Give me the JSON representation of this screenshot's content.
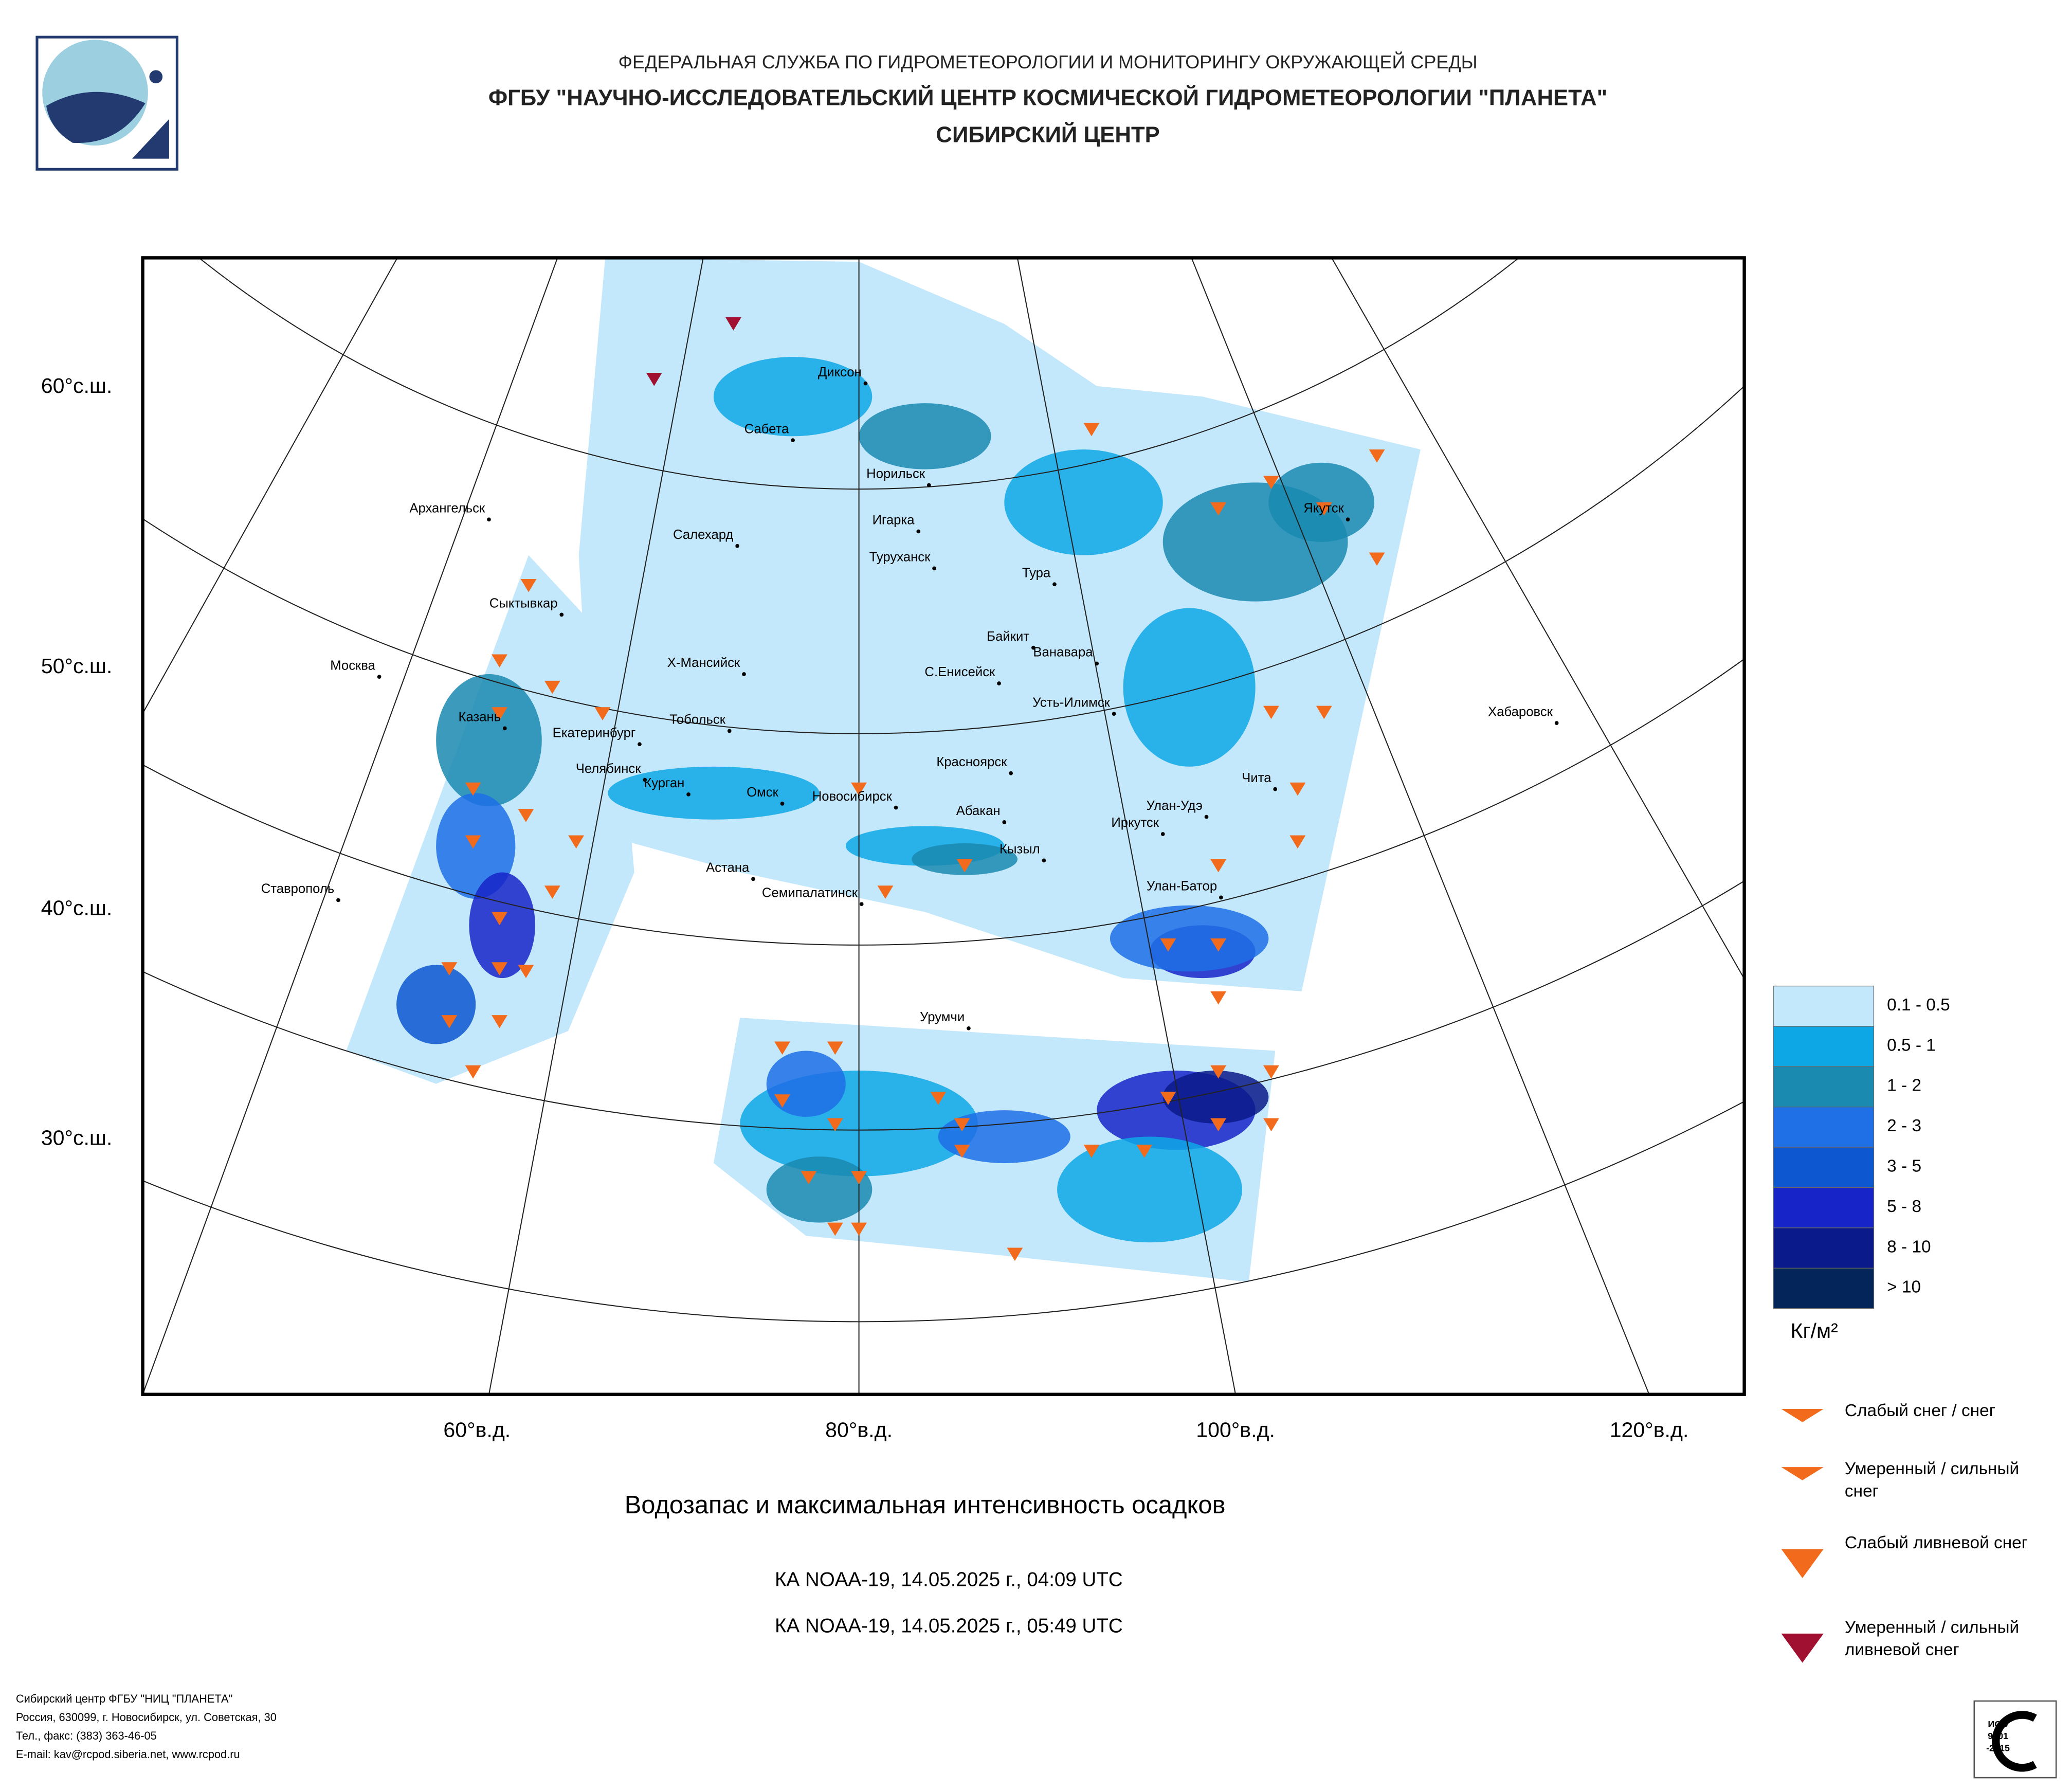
{
  "header": {
    "line1": "ФЕДЕРАЛЬНАЯ СЛУЖБА ПО ГИДРОМЕТЕОРОЛОГИИ И МОНИТОРИНГУ ОКРУЖАЮЩЕЙ СРЕДЫ",
    "line2": "ФГБУ \"НАУЧНО-ИССЛЕДОВАТЕЛЬСКИЙ ЦЕНТР КОСМИЧЕСКОЙ ГИДРОМЕТЕОРОЛОГИИ \"ПЛАНЕТА\"",
    "line3": "СИБИРСКИЙ ЦЕНТР"
  },
  "map": {
    "lat_labels": [
      "60°с.ш.",
      "50°с.ш.",
      "40°с.ш.",
      "30°с.ш."
    ],
    "lon_labels": [
      "60°в.д.",
      "80°в.д.",
      "100°в.д.",
      "120°в.д."
    ],
    "cities": [
      "Диксон",
      "Сабета",
      "Норильск",
      "Архангельск",
      "Игарка",
      "Салехард",
      "Туруханск",
      "Тура",
      "Якутск",
      "Сыктывкар",
      "Байкит",
      "Ванавара",
      "Москва",
      "Х-Мансийск",
      "С.Енисейск",
      "Усть-Илимск",
      "Казань",
      "Тобольск",
      "Хабаровск",
      "Екатеринбург",
      "Красноярск",
      "Челябинск",
      "Чита",
      "Курган",
      "Омск",
      "Новосибирск",
      "Абакан",
      "Улан-Удэ",
      "Иркутск",
      "Кызыл",
      "Астана",
      "Улан-Батор",
      "Ставрополь",
      "Семипалатинск",
      "Урумчи"
    ]
  },
  "legend": {
    "ranges": [
      "0.1 - 0.5",
      "0.5 - 1",
      "1 - 2",
      "2 - 3",
      "3 - 5",
      "5 - 8",
      "8 - 10",
      "> 10"
    ],
    "colors": [
      "#c4e8fb",
      "#0ea7e6",
      "#1a8ab0",
      "#1f6fe6",
      "#0d57d0",
      "#1725c8",
      "#0a1a8a",
      "#04255a"
    ],
    "unit": "Кг/м²",
    "symbols": [
      [
        "Слабый снег / снег"
      ],
      [
        "Умеренный / сильный",
        "снег"
      ],
      [
        "Слабый ливневой снег"
      ],
      [
        "Умеренный / сильный",
        "ливневой снег"
      ]
    ]
  },
  "title": "Водозапас и максимальная интенсивность осадков",
  "passes": [
    "КА NOAA-19, 14.05.2025 г., 04:09 UTC",
    "КА NOAA-19, 14.05.2025 г., 05:49 UTC"
  ],
  "footer": [
    "Сибирский центр ФГБУ \"НИЦ \"ПЛАНЕТА\"",
    "Россия, 630099, г. Новосибирск, ул. Советская, 30",
    "Тел., факс: (383) 363-46-05",
    "E-mail: kav@rcpod.siberia.net, www.rcpod.ru"
  ],
  "badge": [
    "ИСО",
    "9001",
    "-2015"
  ]
}
